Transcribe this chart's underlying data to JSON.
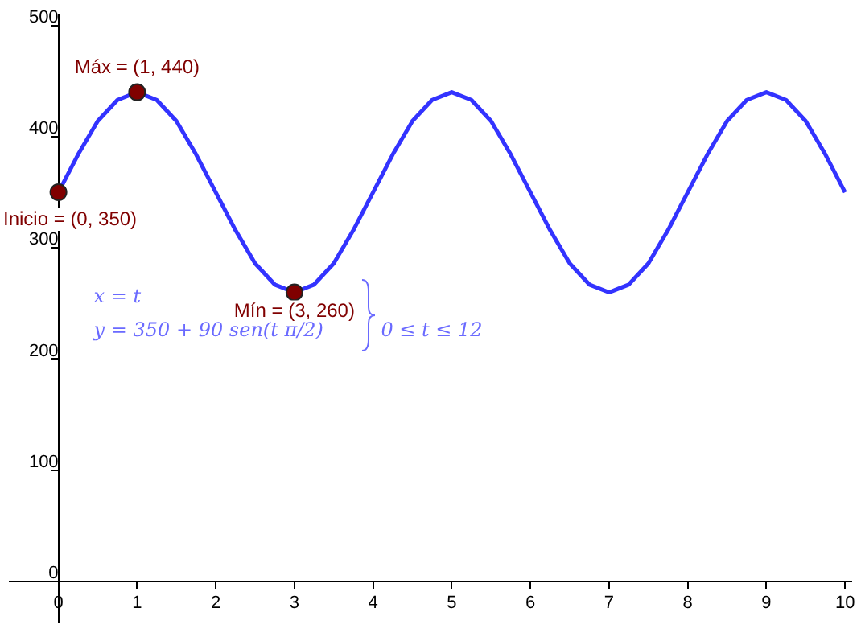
{
  "chart_data": {
    "type": "line",
    "grid": false,
    "legend": false,
    "xlim": [
      -0.62,
      10.08
    ],
    "ylim": [
      -36,
      509
    ],
    "xticks": [
      0,
      1,
      2,
      3,
      4,
      5,
      6,
      7,
      8,
      9,
      10
    ],
    "yticks": [
      0,
      100,
      200,
      300,
      400,
      500
    ],
    "series": [
      {
        "color": "#3333ff",
        "marker": "none",
        "x": [
          0,
          0.25,
          0.5,
          0.75,
          1,
          1.25,
          1.5,
          1.75,
          2,
          2.25,
          2.5,
          2.75,
          3,
          3.25,
          3.5,
          3.75,
          4,
          4.25,
          4.5,
          4.75,
          5,
          5.25,
          5.5,
          5.75,
          6,
          6.25,
          6.5,
          6.75,
          7,
          7.25,
          7.5,
          7.75,
          8,
          8.25,
          8.5,
          8.75,
          9,
          9.25,
          9.5,
          9.75,
          10
        ],
        "values": [
          350,
          384,
          414,
          433,
          440,
          433,
          414,
          384,
          350,
          316,
          286,
          267,
          260,
          267,
          286,
          316,
          350,
          384,
          414,
          433,
          440,
          433,
          414,
          384,
          350,
          316,
          286,
          267,
          260,
          267,
          286,
          316,
          350,
          384,
          414,
          433,
          440,
          433,
          414,
          384,
          350
        ]
      },
      {
        "type": "scatter",
        "color": "#800000",
        "marker": "circle",
        "x": [
          0,
          1,
          3
        ],
        "values": [
          350,
          440,
          260
        ]
      }
    ],
    "annotations": [
      {
        "text": "Inicio = (0, 350)",
        "x": 0,
        "y": 350
      },
      {
        "text": "Máx = (1, 440)",
        "x": 1,
        "y": 440
      },
      {
        "text": "Mín = (3, 260)",
        "x": 3,
        "y": 260
      },
      "x = t",
      "y = 350 + 90 sen(t π/2)",
      "0 ≤ t ≤ 12"
    ]
  }
}
